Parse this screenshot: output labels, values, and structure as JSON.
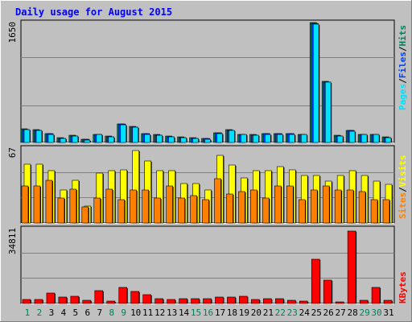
{
  "title": "Daily usage for August 2015",
  "days": [
    "1",
    "2",
    "3",
    "4",
    "5",
    "6",
    "7",
    "8",
    "9",
    "10",
    "11",
    "12",
    "13",
    "14",
    "15",
    "16",
    "17",
    "18",
    "19",
    "20",
    "21",
    "22",
    "23",
    "24",
    "25",
    "26",
    "27",
    "28",
    "29",
    "30",
    "31"
  ],
  "weekend_days": [
    "1",
    "2",
    "8",
    "9",
    "15",
    "16",
    "22",
    "23",
    "29",
    "30"
  ],
  "colors": {
    "page_bg": "#c0c0c0",
    "plot_bg": "#c0c0c0",
    "grid": "#808080",
    "title": "#0000ff",
    "weekday_label": "#000000",
    "weekend_label": "#00805c",
    "hits": "#00805c",
    "files": "#0040ff",
    "pages": "#00e0ff",
    "visits": "#ffff00",
    "sites": "#ff8000",
    "kbytes": "#ff0000"
  },
  "chart_data": [
    {
      "type": "bar",
      "panel": "hits-files-pages",
      "ymax": 1650,
      "ymax_label": "1650",
      "legend": {
        "pages": "Pages",
        "files": "Files",
        "hits": "Hits",
        "sep": "/"
      },
      "series": [
        {
          "name": "Hits",
          "values": [
            185,
            175,
            125,
            65,
            95,
            45,
            115,
            85,
            255,
            215,
            125,
            105,
            85,
            75,
            65,
            55,
            135,
            175,
            115,
            105,
            125,
            125,
            125,
            115,
            1640,
            840,
            95,
            165,
            115,
            115,
            75
          ]
        },
        {
          "name": "Files",
          "values": [
            180,
            170,
            120,
            60,
            90,
            40,
            110,
            80,
            250,
            210,
            120,
            100,
            80,
            70,
            60,
            50,
            130,
            170,
            110,
            100,
            120,
            120,
            120,
            110,
            1630,
            830,
            90,
            160,
            110,
            110,
            70
          ]
        },
        {
          "name": "Pages",
          "values": [
            175,
            165,
            115,
            55,
            85,
            35,
            105,
            75,
            245,
            205,
            115,
            95,
            75,
            65,
            55,
            45,
            125,
            165,
            105,
            95,
            115,
            115,
            115,
            105,
            1620,
            820,
            85,
            155,
            105,
            105,
            65
          ]
        }
      ]
    },
    {
      "type": "bar",
      "panel": "visits-sites",
      "ymax": 67,
      "ymax_label": "67",
      "legend": {
        "visits": "Visits",
        "sites": "Sites",
        "sep": "/"
      },
      "series": [
        {
          "name": "Visits",
          "values": [
            52,
            52,
            46,
            29,
            38,
            15,
            44,
            46,
            47,
            64,
            55,
            46,
            46,
            35,
            35,
            29,
            60,
            51,
            40,
            46,
            46,
            50,
            47,
            42,
            42,
            37,
            42,
            46,
            42,
            37,
            34
          ]
        },
        {
          "name": "Sites",
          "values": [
            33,
            33,
            38,
            22,
            30,
            14,
            22,
            30,
            21,
            29,
            29,
            22,
            33,
            22,
            24,
            21,
            39,
            26,
            28,
            29,
            22,
            33,
            33,
            21,
            29,
            33,
            29,
            29,
            28,
            21,
            21
          ]
        }
      ]
    },
    {
      "type": "bar",
      "panel": "kbytes",
      "ymax": 34811,
      "ymax_label": "34811",
      "legend": {
        "kbytes": "KBytes"
      },
      "series": [
        {
          "name": "KBytes",
          "values": [
            1800,
            1800,
            4900,
            2800,
            3400,
            1400,
            5800,
            1200,
            7500,
            5400,
            3900,
            2400,
            2000,
            2200,
            2200,
            2100,
            3000,
            3000,
            3300,
            1800,
            2200,
            2200,
            1500,
            1000,
            20200,
            10700,
            800,
            33400,
            1300,
            7500,
            1400
          ]
        }
      ]
    }
  ]
}
